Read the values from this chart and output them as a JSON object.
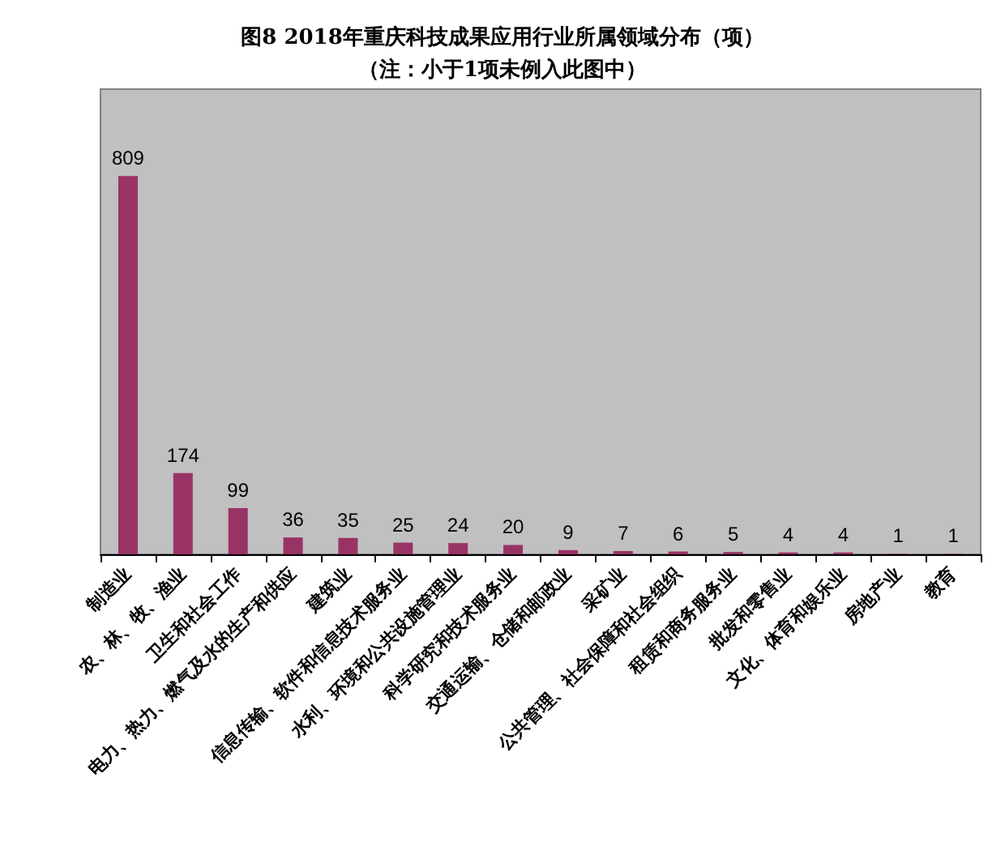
{
  "chart_data": {
    "type": "bar",
    "title": "图8 2018年重庆科技成果应用行业所属领域分布（项）",
    "subtitle": "（注：小于1项未例入此图中）",
    "categories": [
      "制造业",
      "农、林、牧、渔业",
      "卫生和社会工作",
      "电力、热力、燃气及水的生产和供应",
      "建筑业",
      "信息传输、软件和信息技术服务业",
      "水利、环境和公共设施管理业",
      "科学研究和技术服务业",
      "交通运输、仓储和邮政业",
      "采矿业",
      "公共管理、社会保障和社会组织",
      "租赁和商务服务业",
      "批发和零售业",
      "文化、体育和娱乐业",
      "房地产业",
      "教育"
    ],
    "values": [
      809,
      174,
      99,
      36,
      35,
      25,
      24,
      20,
      9,
      7,
      6,
      5,
      4,
      4,
      1,
      1
    ],
    "color": "#993366",
    "data_labels": true
  }
}
